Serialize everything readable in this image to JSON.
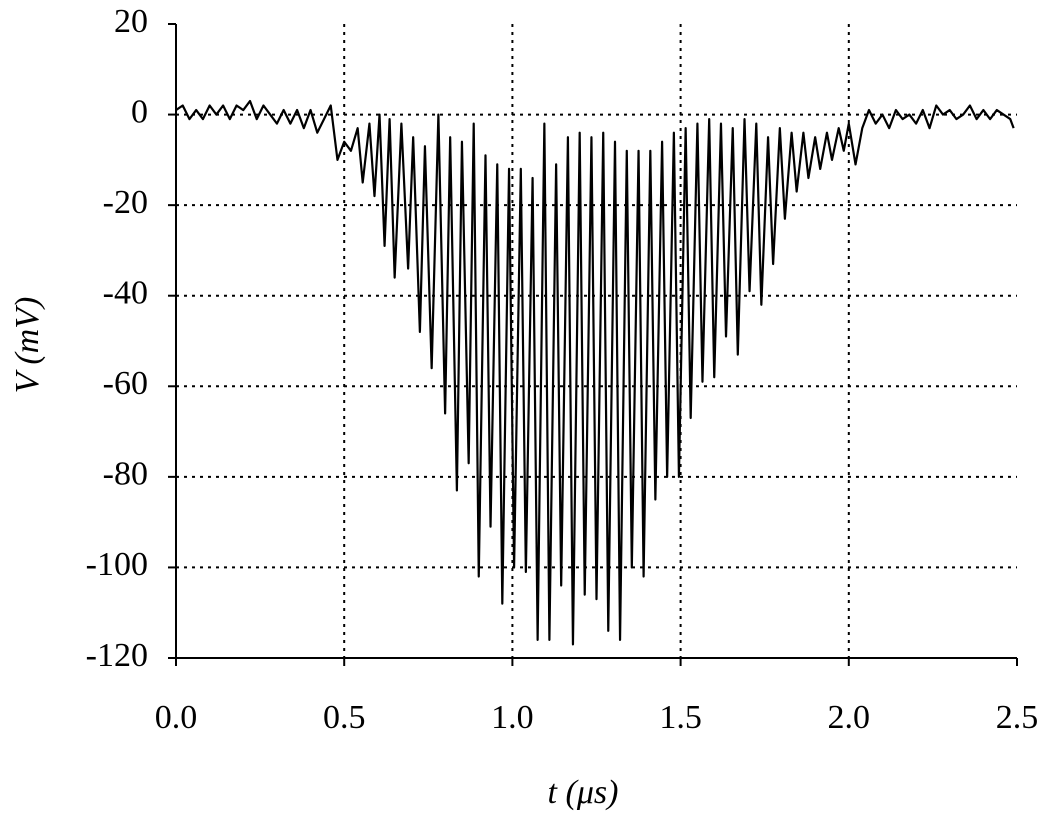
{
  "chart_data": {
    "type": "line",
    "x_label": "t  (μs)",
    "y_label": "V (mV)",
    "xlim": [
      0,
      2.5
    ],
    "ylim": [
      -120,
      20
    ],
    "xticks": [
      {
        "value": 0,
        "label": "0.0"
      },
      0.5,
      {
        "value": 1,
        "label": "1.0"
      },
      1.5,
      {
        "value": 2,
        "label": "2.0"
      },
      2.5
    ],
    "yticks": [
      20,
      0,
      -20,
      -40,
      -60,
      -80,
      -100,
      -120
    ],
    "grid": true,
    "series": [
      {
        "color": "#000000",
        "x": [
          0,
          0.02,
          0.04,
          0.06,
          0.08,
          0.1,
          0.12,
          0.14,
          0.16,
          0.18,
          0.2,
          0.22,
          0.24,
          0.26,
          0.28,
          0.3,
          0.32,
          0.34,
          0.36,
          0.38,
          0.4,
          0.42,
          0.44,
          0.46,
          0.48,
          0.5,
          0.52,
          0.54,
          0.555,
          0.575,
          0.59,
          0.605,
          0.62,
          0.635,
          0.65,
          0.67,
          0.69,
          0.705,
          0.725,
          0.74,
          0.76,
          0.78,
          0.8,
          0.815,
          0.835,
          0.85,
          0.87,
          0.885,
          0.9,
          0.92,
          0.935,
          0.955,
          0.97,
          0.99,
          1.005,
          1.025,
          1.04,
          1.06,
          1.075,
          1.095,
          1.11,
          1.13,
          1.145,
          1.165,
          1.18,
          1.2,
          1.215,
          1.235,
          1.25,
          1.27,
          1.285,
          1.305,
          1.32,
          1.34,
          1.355,
          1.375,
          1.39,
          1.41,
          1.425,
          1.445,
          1.46,
          1.48,
          1.495,
          1.515,
          1.53,
          1.55,
          1.565,
          1.585,
          1.6,
          1.62,
          1.635,
          1.655,
          1.67,
          1.69,
          1.705,
          1.725,
          1.74,
          1.76,
          1.775,
          1.795,
          1.81,
          1.83,
          1.845,
          1.865,
          1.88,
          1.9,
          1.915,
          1.935,
          1.95,
          1.97,
          1.985,
          2.0,
          2.02,
          2.04,
          2.06,
          2.08,
          2.1,
          2.12,
          2.14,
          2.16,
          2.18,
          2.2,
          2.22,
          2.24,
          2.26,
          2.28,
          2.3,
          2.32,
          2.34,
          2.36,
          2.38,
          2.4,
          2.42,
          2.44,
          2.46,
          2.48,
          2.49
        ],
        "values": [
          1,
          2,
          -1,
          1,
          -1,
          2,
          0,
          2,
          -1,
          2,
          1,
          3,
          -1,
          2,
          0,
          -2,
          1,
          -2,
          1,
          -3,
          1,
          -4,
          -1,
          2,
          -10,
          -6,
          -8,
          -3,
          -15,
          -2,
          -18,
          0,
          -29,
          -1,
          -36,
          -2,
          -34,
          -5,
          -48,
          -7,
          -56,
          0,
          -66,
          -5,
          -83,
          -6,
          -77,
          -2,
          -102,
          -9,
          -91,
          -11,
          -108,
          -12,
          -100,
          -12,
          -101,
          -14,
          -116,
          -2,
          -116,
          -11,
          -104,
          -5,
          -117,
          -4,
          -106,
          -5,
          -107,
          -4,
          -114,
          -6,
          -116,
          -8,
          -100,
          -8,
          -102,
          -8,
          -85,
          -6,
          -80,
          -4,
          -80,
          -3,
          -67,
          -2,
          -59,
          -1,
          -58,
          -2,
          -49,
          -3,
          -53,
          -1,
          -39,
          -2,
          -42,
          -5,
          -33,
          -3,
          -23,
          -4,
          -17,
          -4,
          -14,
          -5,
          -12,
          -4,
          -10,
          -3,
          -8,
          -2,
          -11,
          -3,
          1,
          -2,
          0,
          -3,
          1,
          -1,
          0,
          -2,
          1,
          -3,
          2,
          0,
          1,
          -1,
          0,
          2,
          -1,
          1,
          -1,
          1,
          0,
          -1,
          -3
        ]
      }
    ]
  }
}
